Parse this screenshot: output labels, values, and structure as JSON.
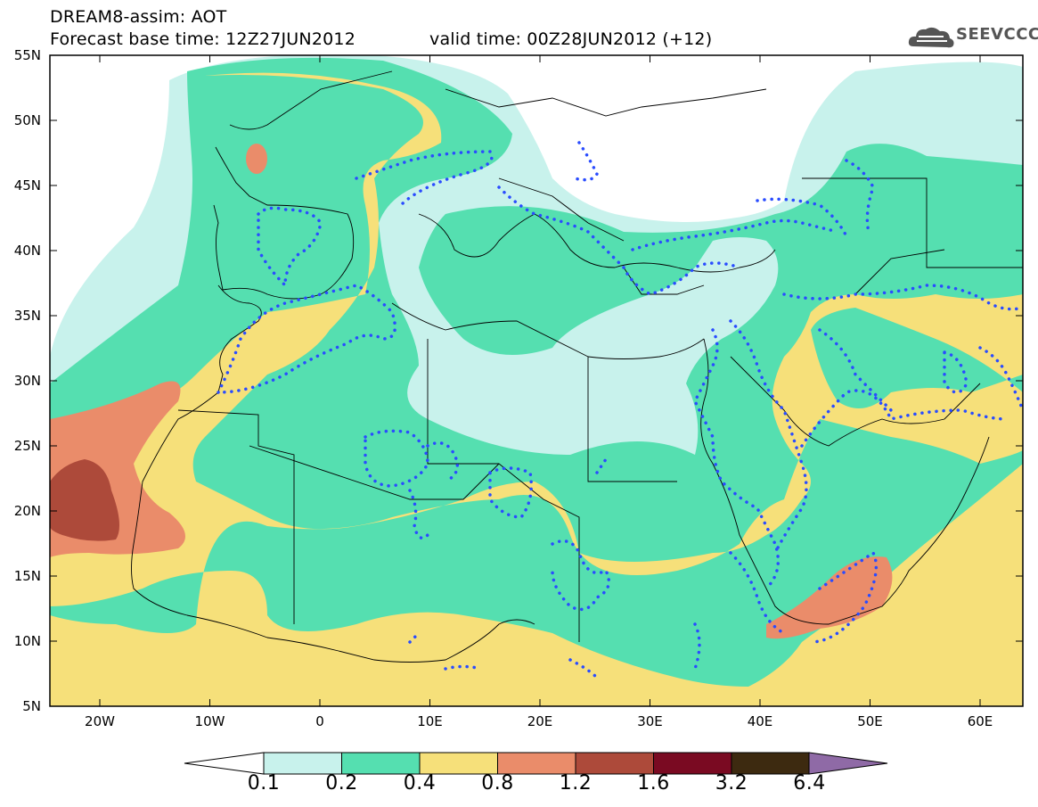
{
  "header": {
    "title_line1": "DREAM8-assim: AOT",
    "title_line2": "Forecast base time: 12Z27JUN2012",
    "title_line3": "valid time: 00Z28JUN2012 (+12)",
    "logo_text": "SEEVCCC"
  },
  "map": {
    "lat_labels": [
      "55N",
      "50N",
      "45N",
      "40N",
      "35N",
      "30N",
      "25N",
      "20N",
      "15N",
      "10N",
      "5N"
    ],
    "lon_labels": [
      "20W",
      "10W",
      "0",
      "10E",
      "20E",
      "30E",
      "40E",
      "50E",
      "60E"
    ]
  },
  "colorbar": {
    "levels": [
      "0.1",
      "0.2",
      "0.4",
      "0.8",
      "1.2",
      "1.6",
      "3.2",
      "6.4"
    ],
    "colors": [
      "#c8f2ec",
      "#55dfb0",
      "#f6e07a",
      "#ea8c6a",
      "#ad4a3a",
      "#7a0a22",
      "#3d2a10",
      "#8f6aa6"
    ]
  }
}
